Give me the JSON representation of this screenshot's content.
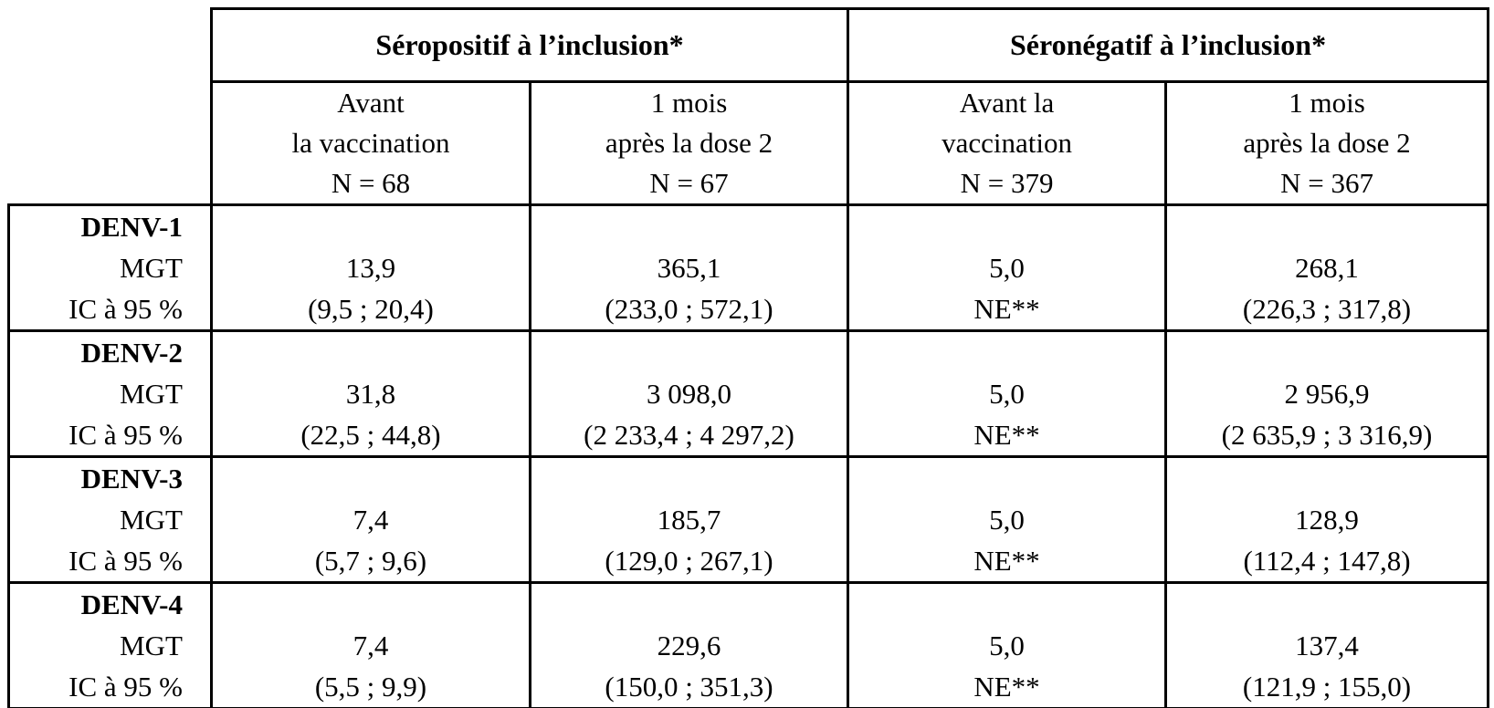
{
  "page": {
    "background": "#ffffff",
    "text_color": "#000000",
    "border_color": "#000000"
  },
  "table": {
    "group_headers": [
      "Séropositif à l’inclusion*",
      "Séronégatif à l’inclusion*"
    ],
    "column_headers": [
      {
        "lines": [
          "Avant",
          "la vaccination",
          "N = 68"
        ]
      },
      {
        "lines": [
          "1 mois",
          "après la dose 2",
          "N = 67"
        ]
      },
      {
        "lines": [
          "Avant la",
          "vaccination",
          "N = 379"
        ]
      },
      {
        "lines": [
          "1 mois",
          "après la dose 2",
          "N = 367"
        ]
      }
    ],
    "stub_lines": [
      "MGT",
      "IC à 95 %"
    ],
    "rows": [
      {
        "serotype": "DENV-1",
        "cells": [
          {
            "mgt": "13,9",
            "ci": "(9,5 ; 20,4)"
          },
          {
            "mgt": "365,1",
            "ci": "(233,0 ; 572,1)"
          },
          {
            "mgt": "5,0",
            "ci": "NE**"
          },
          {
            "mgt": "268,1",
            "ci": "(226,3 ; 317,8)"
          }
        ]
      },
      {
        "serotype": "DENV-2",
        "cells": [
          {
            "mgt": "31,8",
            "ci": "(22,5 ; 44,8)"
          },
          {
            "mgt": "3 098,0",
            "ci": "(2 233,4 ; 4 297,2)"
          },
          {
            "mgt": "5,0",
            "ci": "NE**"
          },
          {
            "mgt": "2 956,9",
            "ci": "(2 635,9 ; 3 316,9)"
          }
        ]
      },
      {
        "serotype": "DENV-3",
        "cells": [
          {
            "mgt": "7,4",
            "ci": "(5,7 ; 9,6)"
          },
          {
            "mgt": "185,7",
            "ci": "(129,0 ; 267,1)"
          },
          {
            "mgt": "5,0",
            "ci": "NE**"
          },
          {
            "mgt": "128,9",
            "ci": "(112,4 ; 147,8)"
          }
        ]
      },
      {
        "serotype": "DENV-4",
        "cells": [
          {
            "mgt": "7,4",
            "ci": "(5,5 ; 9,9)"
          },
          {
            "mgt": "229,6",
            "ci": "(150,0 ; 351,3)"
          },
          {
            "mgt": "5,0",
            "ci": "NE**"
          },
          {
            "mgt": "137,4",
            "ci": "(121,9 ; 155,0)"
          }
        ]
      }
    ]
  }
}
